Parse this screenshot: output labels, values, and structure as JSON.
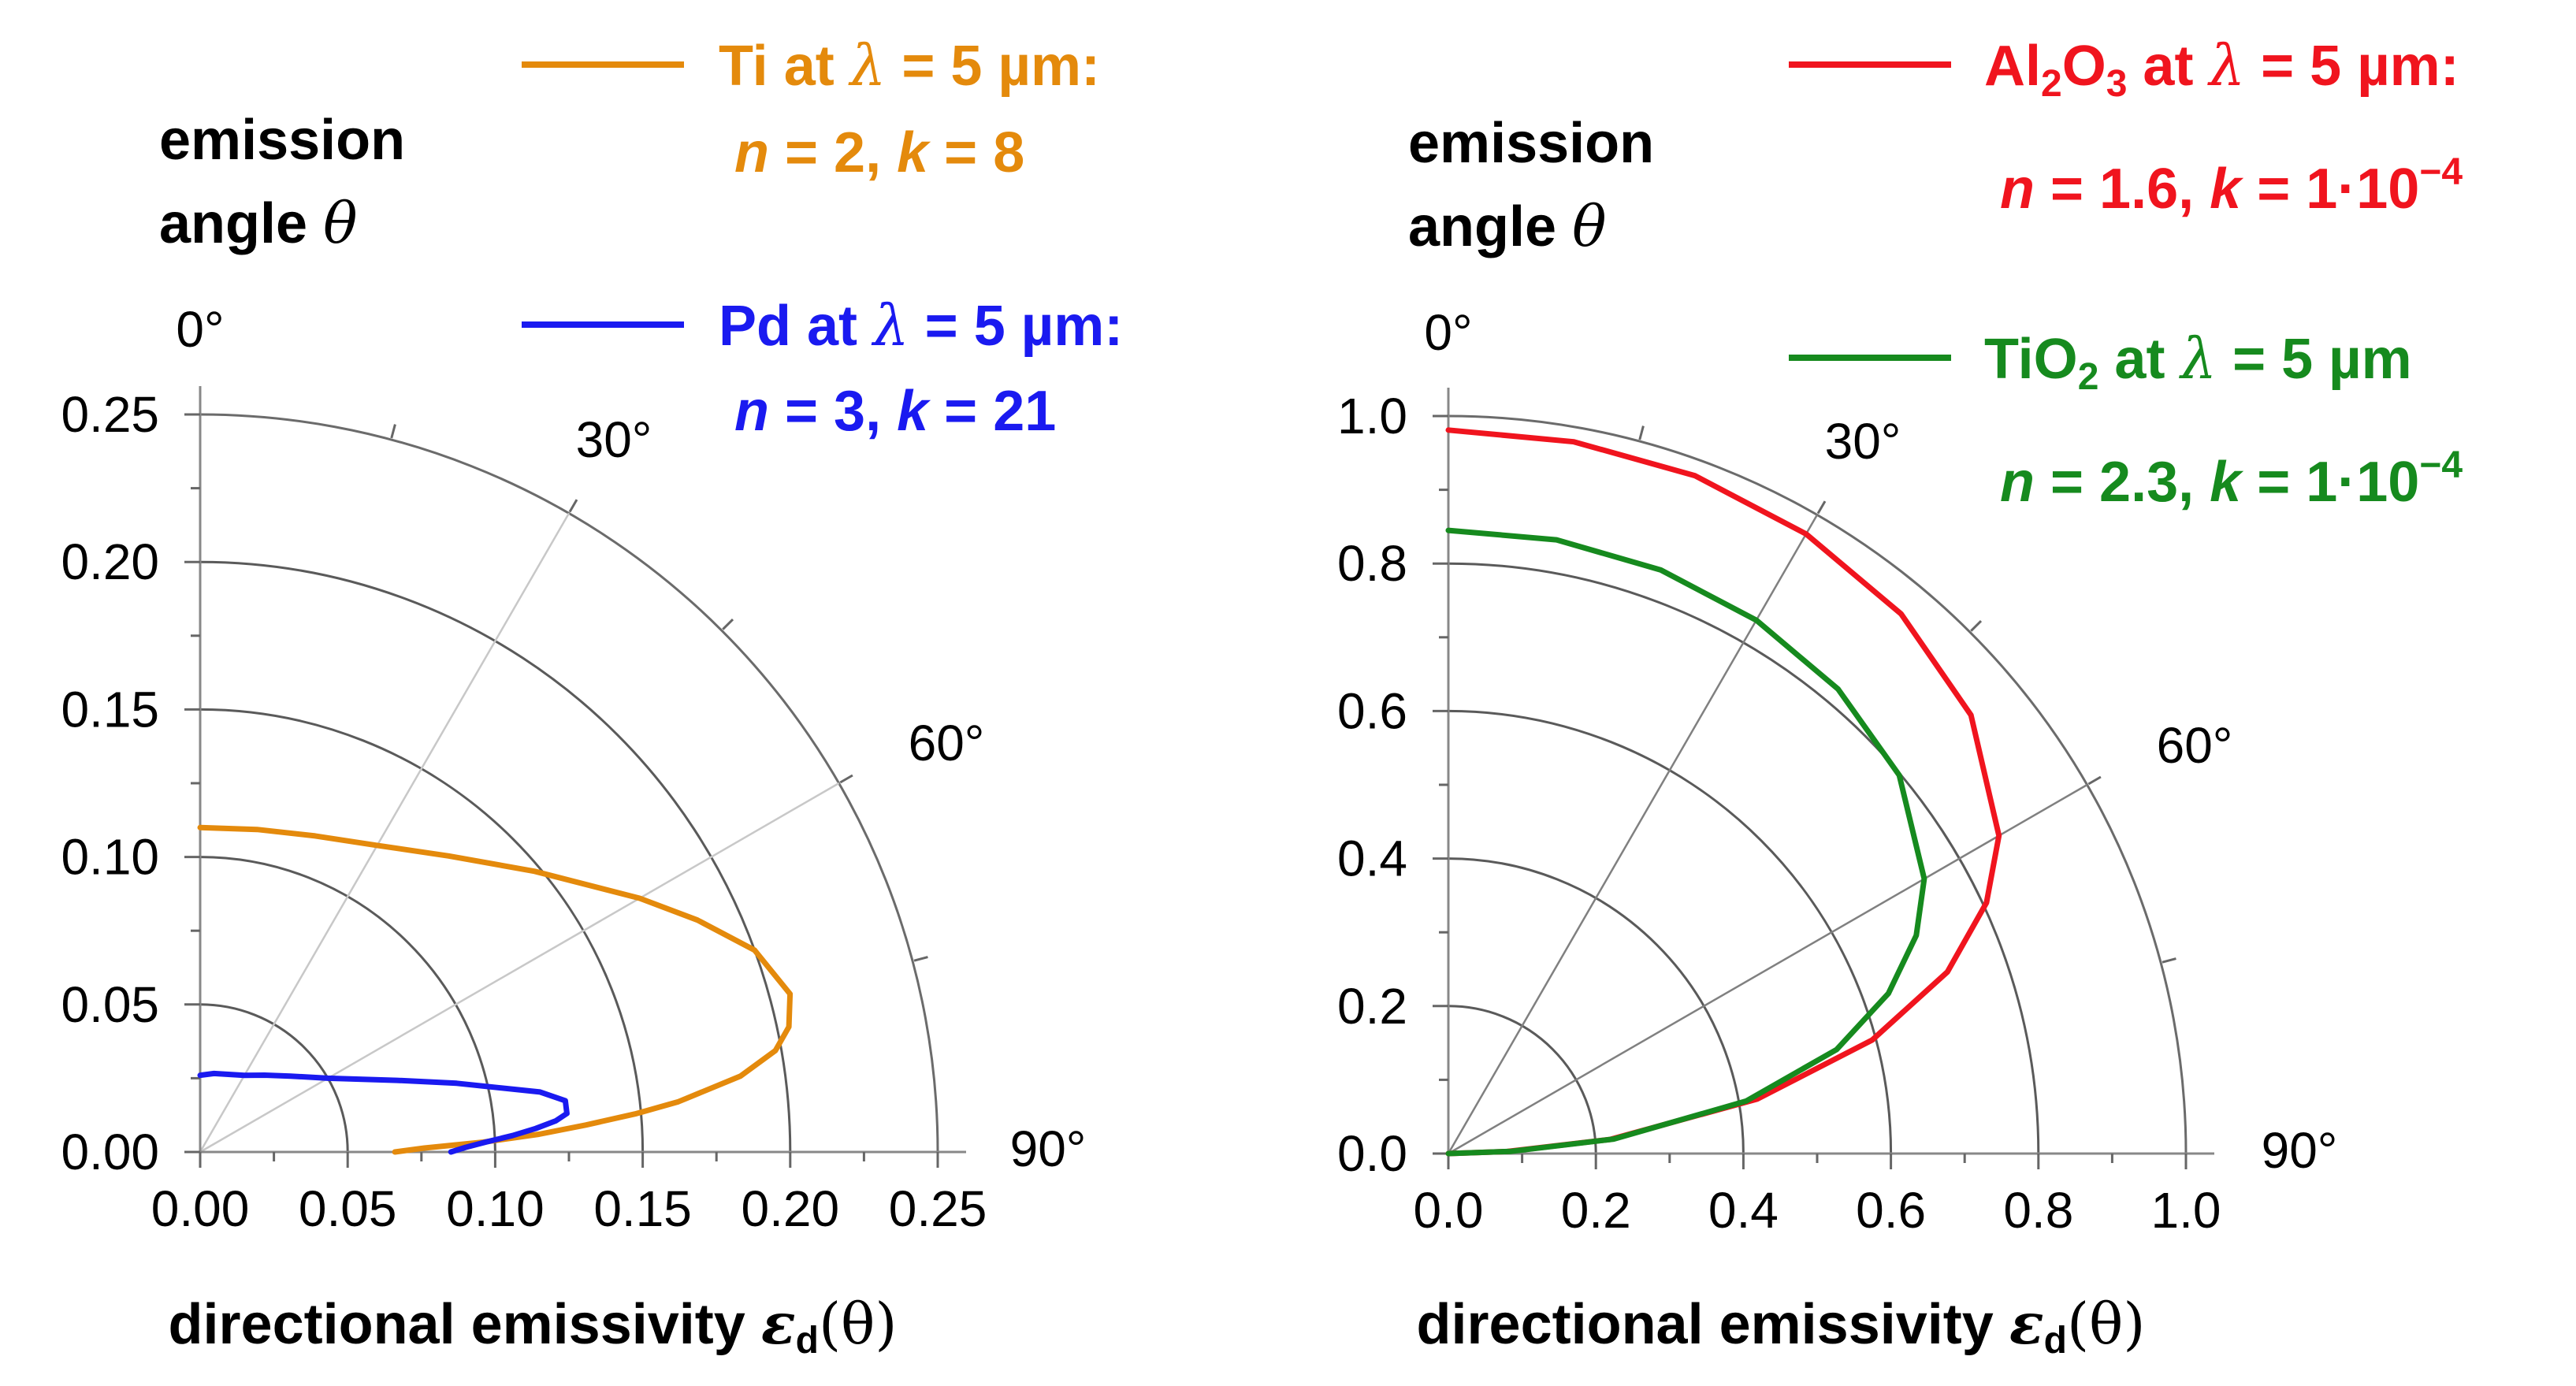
{
  "chart_data": [
    {
      "type": "line",
      "subtype": "polar-quadrant",
      "header": [
        "emission",
        "angle"
      ],
      "header_symbol": "θ",
      "ylim": [
        0,
        0.25
      ],
      "r_ticks": [
        "0.00",
        "0.05",
        "0.10",
        "0.15",
        "0.20",
        "0.25"
      ],
      "x_ticks": [
        "0.00",
        "0.05",
        "0.10",
        "0.15",
        "0.20",
        "0.25"
      ],
      "angle_ticks": [
        "0°",
        "30°",
        "60°",
        "90°"
      ],
      "xlabel": "directional emissivity",
      "xlabel_symbol": "ε",
      "xlabel_sub": "d",
      "xlabel_arg": "(θ)",
      "series": [
        {
          "name": "Ti",
          "color": "#E48A0C",
          "legend_line1": [
            "Ti at ",
            "λ",
            " = 5 µm:"
          ],
          "legend_line2": [
            "n",
            " = 2, ",
            "k",
            " = 8"
          ],
          "angles_deg": [
            0,
            10,
            20,
            30,
            40,
            50,
            60,
            65,
            70,
            75,
            78,
            80,
            82,
            84,
            85,
            86,
            87,
            88,
            89,
            90
          ],
          "values": [
            0.11,
            0.111,
            0.114,
            0.12,
            0.131,
            0.148,
            0.172,
            0.186,
            0.2,
            0.207,
            0.204,
            0.198,
            0.185,
            0.163,
            0.148,
            0.131,
            0.115,
            0.096,
            0.076,
            0.066
          ]
        },
        {
          "name": "Pd",
          "color": "#1A1AF0",
          "legend_line1": [
            "Pd at ",
            "λ",
            " = 5 µm:"
          ],
          "legend_line2": [
            "n",
            " = 3, ",
            "k",
            " = 21"
          ],
          "angles_deg": [
            0,
            10,
            20,
            30,
            40,
            50,
            60,
            70,
            75,
            80,
            82,
            84,
            85,
            86,
            87,
            88,
            89,
            90
          ],
          "values": [
            0.026,
            0.027,
            0.028,
            0.03,
            0.034,
            0.04,
            0.05,
            0.071,
            0.09,
            0.117,
            0.125,
            0.125,
            0.121,
            0.114,
            0.106,
            0.097,
            0.09,
            0.085
          ]
        }
      ]
    },
    {
      "type": "line",
      "subtype": "polar-quadrant",
      "header": [
        "emission",
        "angle"
      ],
      "header_symbol": "θ",
      "ylim": [
        0,
        1.0
      ],
      "r_ticks": [
        "0.0",
        "0.2",
        "0.4",
        "0.6",
        "0.8",
        "1.0"
      ],
      "x_ticks": [
        "0.0",
        "0.2",
        "0.4",
        "0.6",
        "0.8",
        "1.0"
      ],
      "angle_ticks": [
        "0°",
        "30°",
        "60°",
        "90°"
      ],
      "xlabel": "directional emissivity",
      "xlabel_symbol": "ε",
      "xlabel_sub": "d",
      "xlabel_arg": "(θ)",
      "series": [
        {
          "name": "Al2O3",
          "color": "#F0141E",
          "legend_line1": [
            "Al",
            "2",
            "O",
            "3",
            " at ",
            "λ",
            " = 5 µm:"
          ],
          "legend_line2": [
            "n",
            " = 1.6, ",
            "k",
            " = 1·10",
            "−4"
          ],
          "angles_deg": [
            0,
            10,
            20,
            30,
            40,
            50,
            60,
            65,
            70,
            75,
            80,
            85,
            88,
            90
          ],
          "values": [
            0.981,
            0.98,
            0.978,
            0.97,
            0.955,
            0.925,
            0.862,
            0.805,
            0.72,
            0.595,
            0.425,
            0.22,
            0.08,
            0.0
          ]
        },
        {
          "name": "TiO2",
          "color": "#168A1E",
          "legend_line1": [
            "TiO",
            "2",
            " at ",
            "λ",
            " = 5 µm"
          ],
          "legend_line2": [
            "n",
            " = 2.3, ",
            "k",
            " = 1·10",
            "−4"
          ],
          "angles_deg": [
            0,
            10,
            20,
            30,
            40,
            50,
            60,
            65,
            70,
            75,
            80,
            85,
            88,
            90
          ],
          "values": [
            0.845,
            0.845,
            0.842,
            0.835,
            0.822,
            0.798,
            0.745,
            0.7,
            0.635,
            0.545,
            0.41,
            0.225,
            0.085,
            0.0
          ]
        }
      ]
    }
  ]
}
